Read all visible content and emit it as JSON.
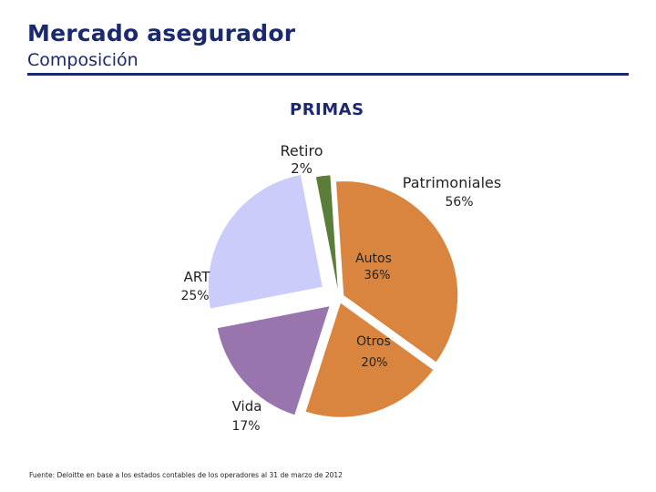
{
  "header": {
    "title": "Mercado asegurador",
    "subtitle": "Composición"
  },
  "chart_data": {
    "type": "pie",
    "title": "PRIMAS",
    "slices": [
      {
        "name": "Retiro",
        "pct_label": "2%",
        "value": 2,
        "color": "#5a7d3a"
      },
      {
        "name": "Autos",
        "pct_label": "36%",
        "value": 36,
        "color": "#d98540",
        "group": "Patrimoniales"
      },
      {
        "name": "Otros",
        "pct_label": "20%",
        "value": 20,
        "color": "#d98540",
        "group": "Patrimoniales"
      },
      {
        "name": "Vida",
        "pct_label": "17%",
        "value": 17,
        "color": "#9975ad"
      },
      {
        "name": "ART",
        "pct_label": "25%",
        "value": 25,
        "color": "#ccccfa"
      }
    ],
    "groups": [
      {
        "name": "Patrimoniales",
        "pct_label": "56%"
      }
    ]
  },
  "footer": {
    "source": "Fuente: Deloitte en base a los estados contables de los operadores al 31 de marzo de 2012"
  }
}
